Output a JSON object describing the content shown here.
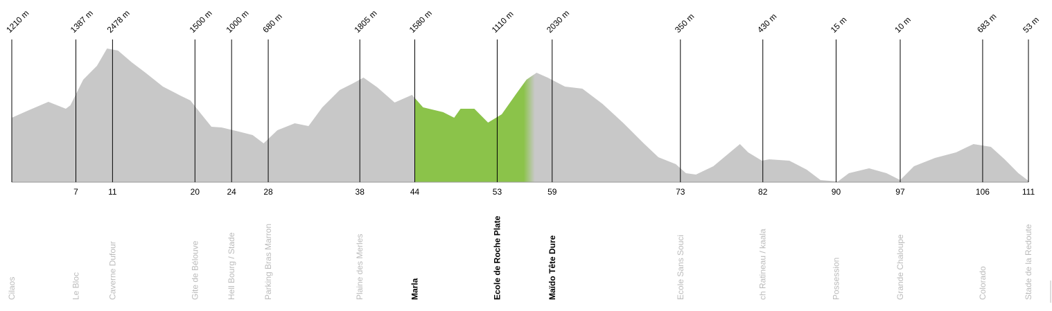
{
  "chart_data": {
    "type": "elevation-profile",
    "color": "#c8c8c8",
    "highlight": {
      "from": 44,
      "to": 56.5,
      "color": "#8bc34a"
    },
    "xlim": [
      0,
      111
    ],
    "ylim": [
      0,
      2600
    ],
    "xticks": [
      7,
      11,
      20,
      24,
      28,
      38,
      44,
      53,
      59,
      73,
      82,
      90,
      97,
      106,
      111
    ],
    "x": [
      0,
      1.7,
      4,
      5.9,
      6.4,
      7.8,
      9.3,
      10.4,
      11.6,
      13.1,
      14.6,
      16.5,
      18.4,
      19.5,
      20.7,
      21.8,
      22.9,
      24.8,
      26.3,
      27.5,
      29,
      30.9,
      32.4,
      33.9,
      35.8,
      37.3,
      38.4,
      39.9,
      41.8,
      43.7,
      44.9,
      47.1,
      48.3,
      49,
      50.5,
      52,
      53.5,
      55.1,
      56.2,
      57.3,
      58.5,
      60.4,
      62.3,
      64.5,
      66.8,
      69,
      70.6,
      72.5,
      73.6,
      74.7,
      76.6,
      79.5,
      80.4,
      81.9,
      82.7,
      84.9,
      86.8,
      88.3,
      90.2,
      91.4,
      93.6,
      95.5,
      97,
      98.5,
      100.8,
      103.1,
      105,
      106.9,
      108.4,
      109.9,
      111
    ],
    "values": [
      1200,
      1329,
      1497,
      1368,
      1432,
      1910,
      2168,
      2490,
      2452,
      2232,
      2039,
      1781,
      1613,
      1523,
      1265,
      1032,
      1019,
      942,
      877,
      723,
      968,
      1097,
      1045,
      1394,
      1716,
      1845,
      1948,
      1768,
      1484,
      1626,
      1394,
      1303,
      1200,
      1368,
      1368,
      1110,
      1265,
      1652,
      1910,
      2039,
      1948,
      1781,
      1742,
      1458,
      1097,
      723,
      465,
      335,
      168,
      142,
      297,
      710,
      555,
      400,
      426,
      400,
      232,
      39,
      13,
      168,
      258,
      168,
      39,
      297,
      452,
      555,
      710,
      658,
      426,
      168,
      26
    ],
    "checkpoints": {
      "x": [
        0,
        7,
        11,
        20,
        24,
        28,
        38,
        44,
        53,
        59,
        73,
        82,
        90,
        97,
        106,
        111
      ],
      "elevation_labels": [
        "1210 m",
        "1387 m",
        "2478 m",
        "1500 m",
        "1000 m",
        "680 m",
        "1805 m",
        "1580 m",
        "1110 m",
        "2030 m",
        "350 m",
        "430 m",
        "15 m",
        "10 m",
        "683 m",
        "53 m"
      ],
      "names": [
        "Cilaos",
        "Le Bloc",
        "Caverne Dufour",
        "Gite de Bélouve",
        "Hell Bourg / Stade",
        "Parking Bras Marron",
        "Plaine des Merles",
        "Marla",
        "Ecole de Roche Plate",
        "Maïdo Tête Dure",
        "Ecole Sans Souci",
        "ch Ratineau / kaala",
        "Possession",
        "Grande Chaloupe",
        "Colorado",
        "Stade de la Redoute"
      ],
      "emphasized": [
        7,
        8,
        9
      ]
    }
  }
}
